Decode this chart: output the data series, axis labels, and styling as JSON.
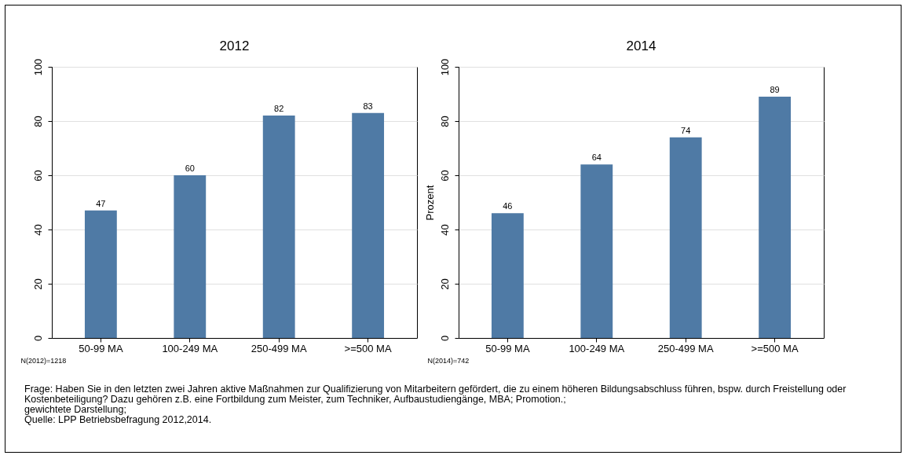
{
  "chart_data": [
    {
      "type": "bar",
      "title": "2012",
      "categories": [
        "50-99 MA",
        "100-249 MA",
        "250-499 MA",
        ">=500 MA"
      ],
      "values": [
        47,
        60,
        82,
        83
      ],
      "color": "#4f7aa5",
      "ylim": [
        0,
        100
      ],
      "yticks": [
        0,
        20,
        40,
        60,
        80,
        100
      ],
      "grid": "y",
      "data_labels": true,
      "annotations": [
        "N(2012)=1218",
        "Frage: Haben Sie in den letzten zwei Jahren aktive Maßnahmen zur Qualifizierung  von Mitarbeitern gefördert, die zu einem höheren Bildungsabschluss führen, bspw. durch Freistellung oder Kostenbeteiligung? Dazu gehören z.B. eine Fortbildung zum Meister, zum Techniker, Aufbaustudiengänge, MBA; Promotion.;",
        "gewichtete Darstellung;",
        "Quelle: LPP Betriebsbefragung 2012,2014."
      ]
    },
    {
      "type": "bar",
      "title": "2014",
      "ylabel": "Prozent",
      "categories": [
        "50-99 MA",
        "100-249 MA",
        "250-499 MA",
        ">=500 MA"
      ],
      "values": [
        46,
        64,
        74,
        89
      ],
      "color": "#4f7aa5",
      "ylim": [
        0,
        100
      ],
      "yticks": [
        0,
        20,
        40,
        60,
        80,
        100
      ],
      "grid": "y",
      "data_labels": true,
      "annotations": [
        "N(2014)=742"
      ]
    }
  ]
}
